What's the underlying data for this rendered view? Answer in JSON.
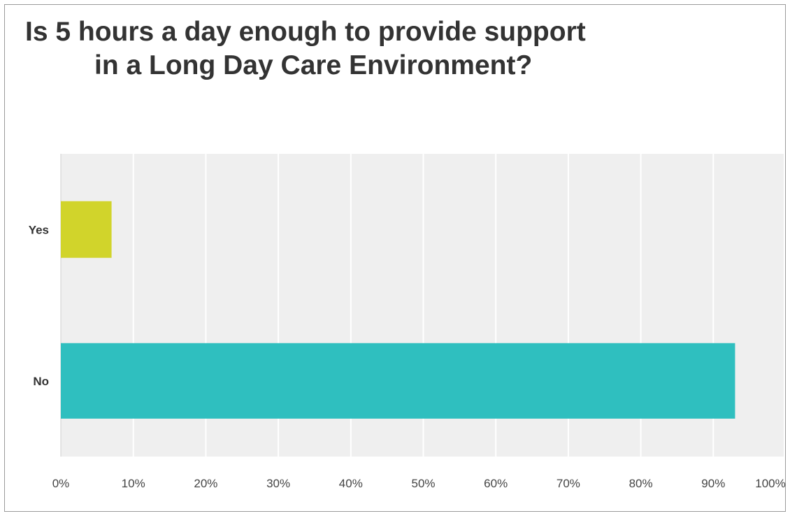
{
  "chart_data": {
    "type": "bar",
    "orientation": "horizontal",
    "title_lines": [
      "Is 5 hours a day enough to provide support",
      "in a Long Day Care Environment?"
    ],
    "categories": [
      "Yes",
      "No"
    ],
    "values": [
      7,
      93
    ],
    "colors": [
      "#d1d42b",
      "#2fbfbf"
    ],
    "xlim": [
      0,
      100
    ],
    "x_ticks": [
      0,
      10,
      20,
      30,
      40,
      50,
      60,
      70,
      80,
      90,
      100
    ],
    "x_tick_labels": [
      "0%",
      "10%",
      "20%",
      "30%",
      "40%",
      "50%",
      "60%",
      "70%",
      "80%",
      "90%",
      "100%"
    ],
    "grid": true,
    "plot_background": "#efefef",
    "grid_color": "#ffffff"
  }
}
